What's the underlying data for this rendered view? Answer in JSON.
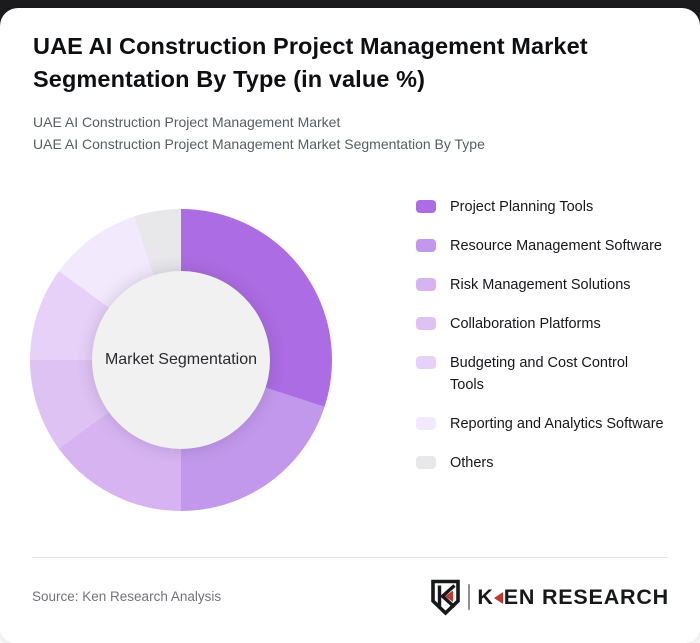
{
  "window": {
    "top_strip_color": "#1b1b1d",
    "card_color": "#ffffff"
  },
  "header": {
    "title": "UAE AI Construction Project Management Market Segmentation By Type (in value %)",
    "subtitle_lines": [
      "UAE AI Construction Project Management Market",
      "UAE AI Construction Project Management Market Segmentation By Type"
    ]
  },
  "chart_data": {
    "type": "pie",
    "subtype": "donut",
    "title": "UAE AI Construction Project Management Market Segmentation By Type (in value %)",
    "center_label": "Market Segmentation",
    "unit": "percent of market value",
    "start_angle_deg": 0,
    "direction": "clockwise",
    "legend_position": "right",
    "categories": [
      "Project Planning Tools",
      "Resource Management Software",
      "Risk Management Solutions",
      "Collaboration Platforms",
      "Budgeting and Cost Control Tools",
      "Reporting and Analytics Software",
      "Others"
    ],
    "values": [
      30,
      20,
      15,
      10,
      10,
      10,
      5
    ],
    "colors": [
      "#ac6ce3",
      "#c298ec",
      "#d7b3f2",
      "#dec2f4",
      "#e7d1f8",
      "#f3e9fc",
      "#e8e7ea"
    ],
    "hole_color": "#f1f1f2"
  },
  "footer": {
    "source": "Source: Ken Research Analysis",
    "brand": {
      "k": "K",
      "rest": "EN RESEARCH",
      "accent": "#c0392f"
    }
  }
}
